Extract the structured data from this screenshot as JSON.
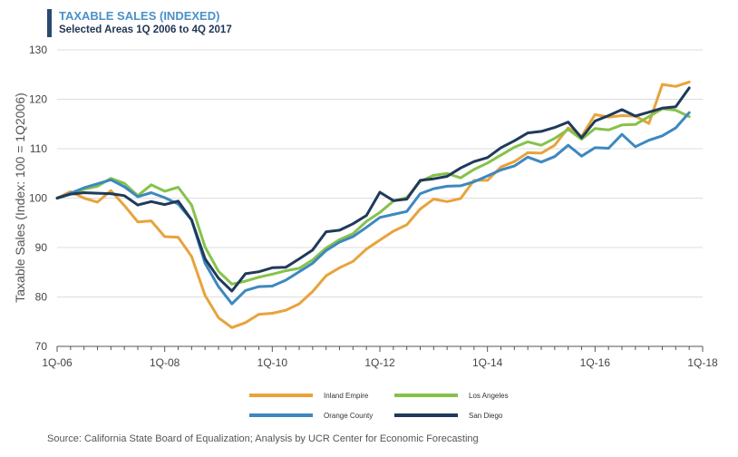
{
  "title": "TAXABLE SALES (INDEXED)",
  "subtitle": "Selected Areas 1Q 2006 to 4Q 2017",
  "source": "Source: California State Board of Equalization; Analysis by UCR Center for Economic Forecasting",
  "colors": {
    "inland_empire": "#e8a33c",
    "los_angeles": "#86c24a",
    "orange_county": "#3d88c0",
    "san_diego": "#1f3a5a"
  },
  "chart_data": {
    "type": "line",
    "ylabel": "Taxable Sales (Index: 100 = 1Q2006)",
    "xlabel": "",
    "ylim": [
      70,
      130
    ],
    "yticks": [
      70,
      80,
      90,
      100,
      110,
      120,
      130
    ],
    "x_tick_labels": [
      "1Q-06",
      "1Q-08",
      "1Q-10",
      "1Q-12",
      "1Q-14",
      "1Q-16",
      "1Q-18"
    ],
    "x_tick_positions": [
      0,
      8,
      16,
      24,
      32,
      40,
      48
    ],
    "x": [
      "1Q-06",
      "2Q-06",
      "3Q-06",
      "4Q-06",
      "1Q-07",
      "2Q-07",
      "3Q-07",
      "4Q-07",
      "1Q-08",
      "2Q-08",
      "3Q-08",
      "4Q-08",
      "1Q-09",
      "2Q-09",
      "3Q-09",
      "4Q-09",
      "1Q-10",
      "2Q-10",
      "3Q-10",
      "4Q-10",
      "1Q-11",
      "2Q-11",
      "3Q-11",
      "4Q-11",
      "1Q-12",
      "2Q-12",
      "3Q-12",
      "4Q-12",
      "1Q-13",
      "2Q-13",
      "3Q-13",
      "4Q-13",
      "1Q-14",
      "2Q-14",
      "3Q-14",
      "4Q-14",
      "1Q-15",
      "2Q-15",
      "3Q-15",
      "4Q-15",
      "1Q-16",
      "2Q-16",
      "3Q-16",
      "4Q-16",
      "1Q-17",
      "2Q-17",
      "3Q-17",
      "4Q-17"
    ],
    "grid": "horizontal",
    "legend_position": "bottom",
    "series": [
      {
        "name": "Inland Empire",
        "color": "#e8a33c",
        "values": [
          100,
          101.3,
          100,
          99.2,
          101.5,
          98.5,
          95.2,
          95.4,
          92.2,
          92.1,
          88.2,
          80.3,
          75.8,
          73.8,
          74.8,
          76.5,
          76.7,
          77.3,
          78.6,
          81.1,
          84.3,
          85.9,
          87.2,
          89.7,
          91.5,
          93.3,
          94.6,
          97.8,
          99.8,
          99.3,
          99.9,
          103.6,
          103.6,
          106.3,
          107.4,
          109.2,
          109.1,
          110.7,
          114.2,
          112.5,
          116.9,
          116.4,
          116.7,
          116.6,
          115.1,
          123.0,
          122.6,
          123.5
        ]
      },
      {
        "name": "Los Angeles",
        "color": "#86c24a",
        "values": [
          100,
          100.8,
          101.8,
          102.4,
          104,
          103,
          100.5,
          102.7,
          101.4,
          102.2,
          98.6,
          90.1,
          85.2,
          82.6,
          83.2,
          84.0,
          84.6,
          85.3,
          85.8,
          87.5,
          89.9,
          91.6,
          92.8,
          95.3,
          97.1,
          99.4,
          100.1,
          103.4,
          104.6,
          105,
          104.1,
          105.8,
          107.1,
          108.7,
          110.3,
          111.4,
          110.7,
          112.1,
          113.9,
          111.9,
          114.1,
          113.8,
          114.8,
          114.9,
          116.5,
          118.1,
          117.8,
          116.5
        ]
      },
      {
        "name": "Orange County",
        "color": "#3d88c0",
        "values": [
          100,
          101,
          102.1,
          102.9,
          103.7,
          102.3,
          100.3,
          101.1,
          100.1,
          98.8,
          95.6,
          86.8,
          82.1,
          78.6,
          81.3,
          82.1,
          82.2,
          83.4,
          85.1,
          86.8,
          89.4,
          91.1,
          92.2,
          94.1,
          96.1,
          96.7,
          97.3,
          100.9,
          101.9,
          102.4,
          102.5,
          103.3,
          104.5,
          105.7,
          106.5,
          108.3,
          107.3,
          108.4,
          110.7,
          108.5,
          110.2,
          110.1,
          112.9,
          110.4,
          111.7,
          112.6,
          114.2,
          117.3
        ]
      },
      {
        "name": "San Diego",
        "color": "#1f3a5a",
        "values": [
          100,
          100.8,
          101.1,
          101,
          100.9,
          100.5,
          98.6,
          99.3,
          98.7,
          99.4,
          95.6,
          87.7,
          83.8,
          81.2,
          84.7,
          85.1,
          85.9,
          86,
          87.7,
          89.5,
          93.2,
          93.5,
          94.8,
          96.5,
          101.2,
          99.5,
          99.8,
          103.6,
          103.9,
          104.4,
          106.1,
          107.4,
          108.2,
          110.2,
          111.6,
          113.2,
          113.5,
          114.3,
          115.4,
          112.2,
          115.6,
          116.7,
          117.9,
          116.6,
          117.4,
          118.2,
          118.5,
          122.3
        ]
      }
    ]
  }
}
